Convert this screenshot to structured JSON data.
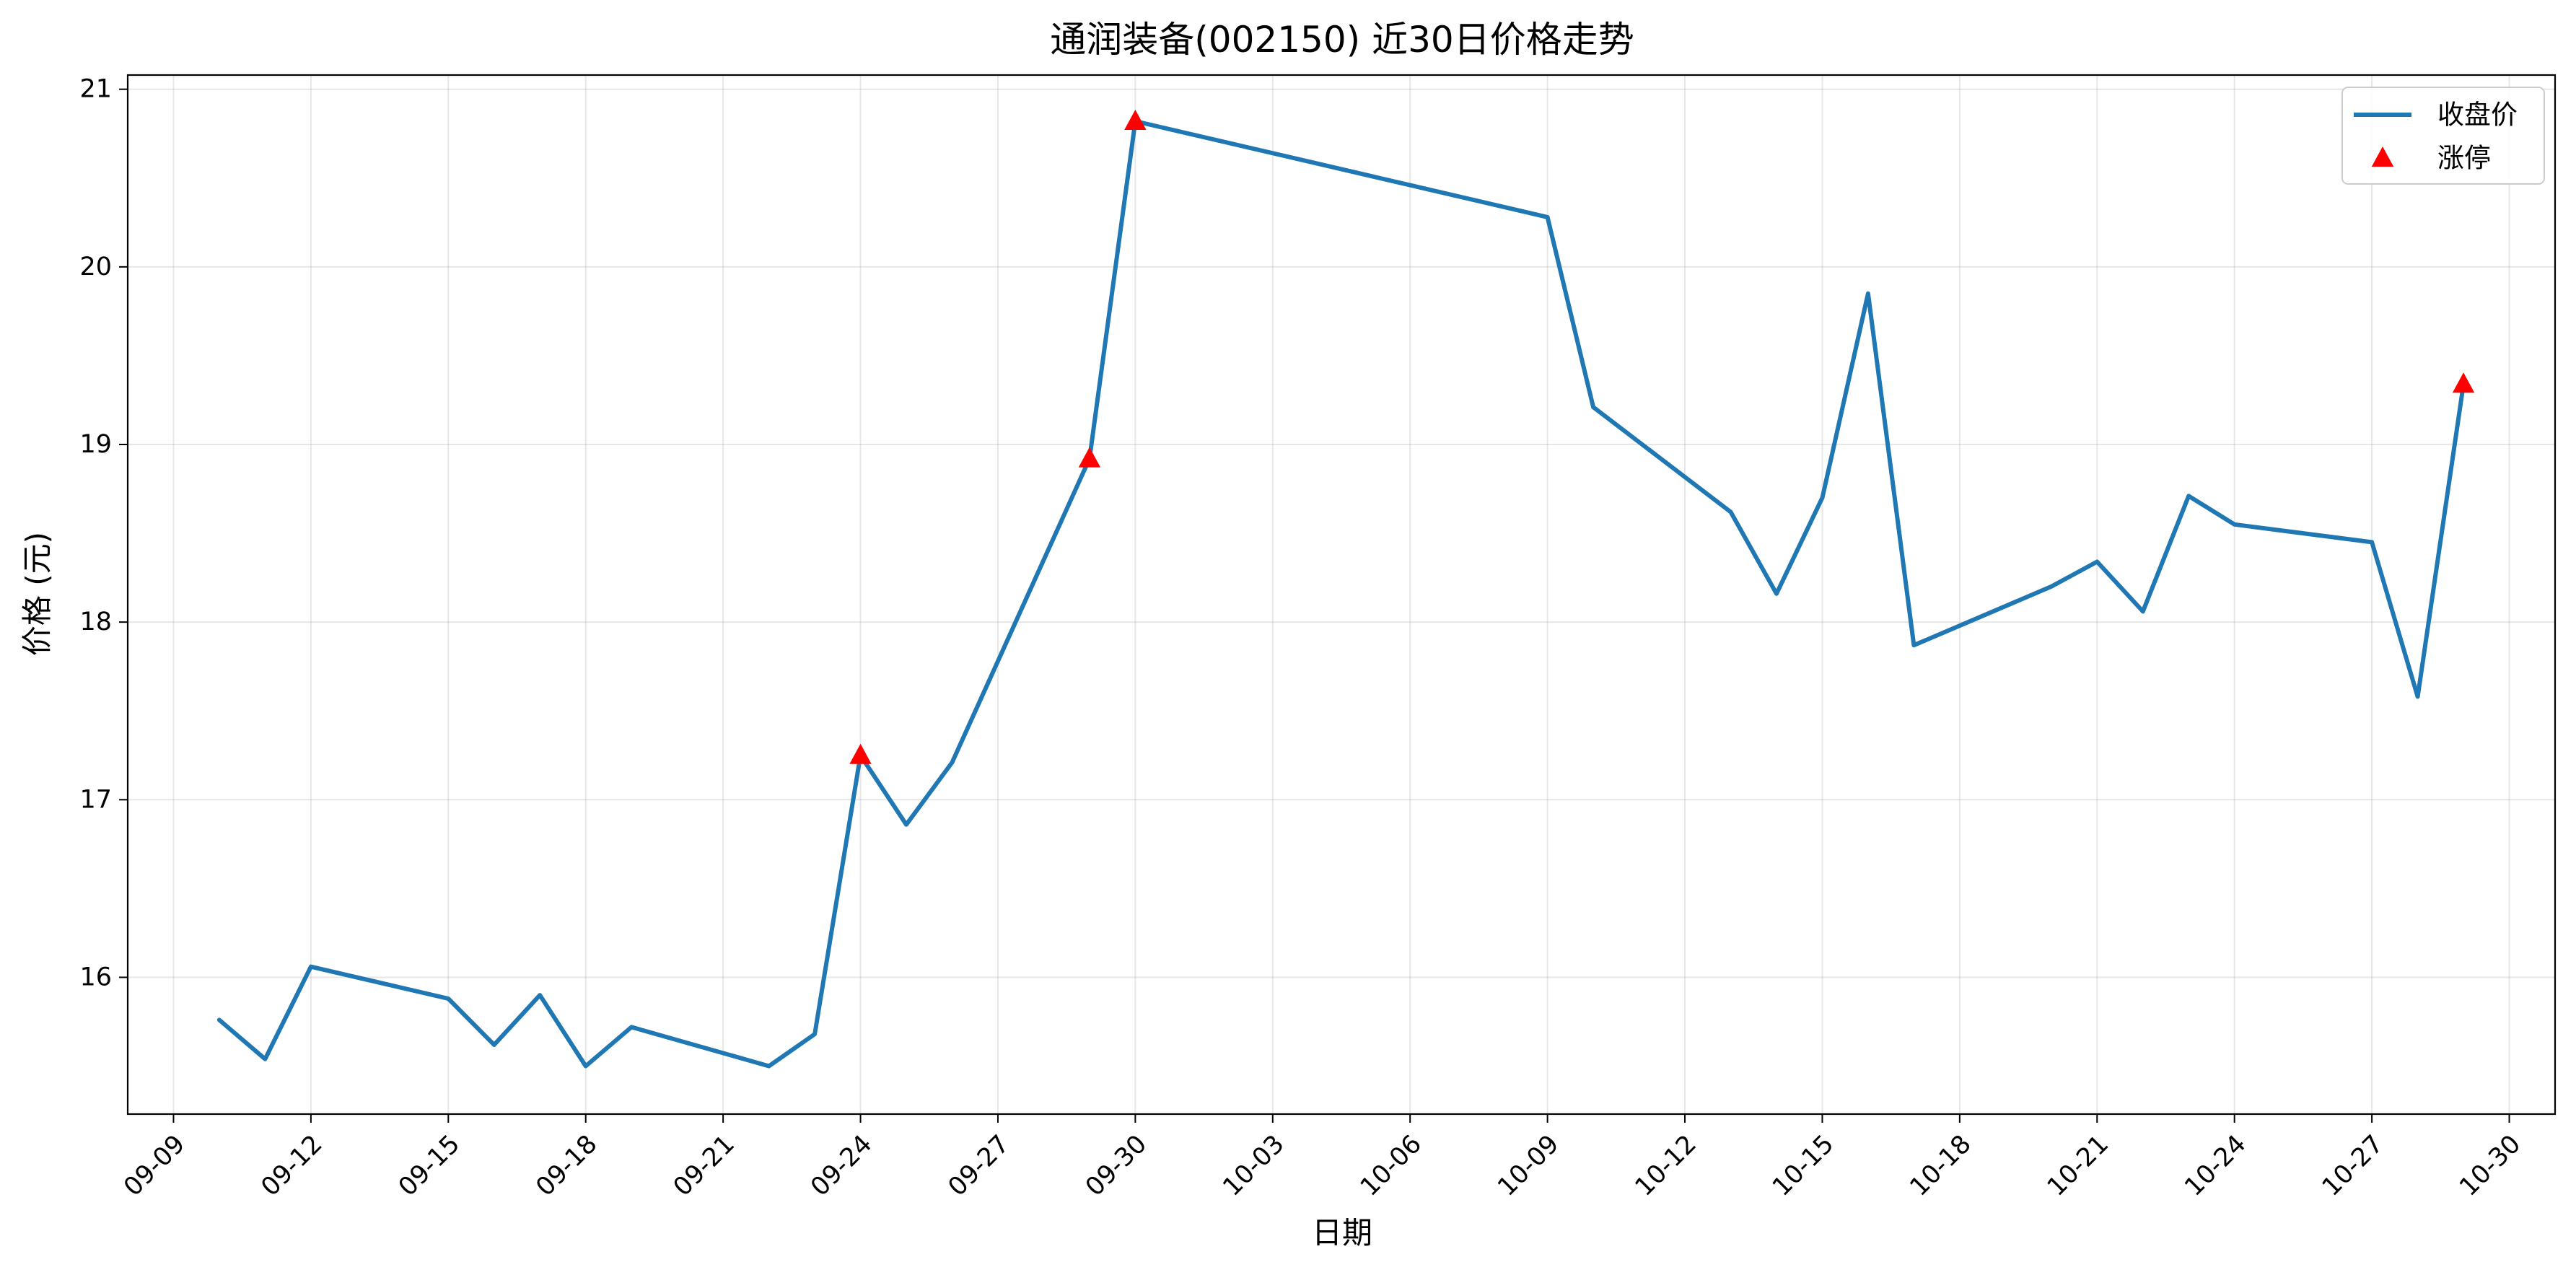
{
  "chart_data": {
    "type": "line",
    "title": "通润装备(002150) 近30日价格走势",
    "xlabel": "日期",
    "ylabel": "价格 (元)",
    "ylim": [
      15.23,
      21.08
    ],
    "xlim": [
      "2024-09-08",
      "2024-10-31"
    ],
    "x_ticks": [
      "09-09",
      "09-12",
      "09-15",
      "09-18",
      "09-21",
      "09-24",
      "09-27",
      "09-30",
      "10-03",
      "10-06",
      "10-09",
      "10-12",
      "10-15",
      "10-18",
      "10-21",
      "10-24",
      "10-27",
      "10-30"
    ],
    "x_tick_dates": [
      "2024-09-09",
      "2024-09-12",
      "2024-09-15",
      "2024-09-18",
      "2024-09-21",
      "2024-09-24",
      "2024-09-27",
      "2024-09-30",
      "2024-10-03",
      "2024-10-06",
      "2024-10-09",
      "2024-10-12",
      "2024-10-15",
      "2024-10-18",
      "2024-10-21",
      "2024-10-24",
      "2024-10-27",
      "2024-10-30"
    ],
    "y_ticks": [
      16,
      17,
      18,
      19,
      20,
      21
    ],
    "grid": true,
    "legend_position": "top-right",
    "series": [
      {
        "name": "收盘价",
        "kind": "line",
        "color": "#1f77b4",
        "x": [
          "2024-09-10",
          "2024-09-11",
          "2024-09-12",
          "2024-09-15",
          "2024-09-16",
          "2024-09-17",
          "2024-09-18",
          "2024-09-19",
          "2024-09-22",
          "2024-09-23",
          "2024-09-24",
          "2024-09-25",
          "2024-09-26",
          "2024-09-29",
          "2024-09-30",
          "2024-10-09",
          "2024-10-10",
          "2024-10-13",
          "2024-10-14",
          "2024-10-15",
          "2024-10-16",
          "2024-10-17",
          "2024-10-20",
          "2024-10-21",
          "2024-10-22",
          "2024-10-23",
          "2024-10-24",
          "2024-10-27",
          "2024-10-28",
          "2024-10-29"
        ],
        "values": [
          15.76,
          15.54,
          16.06,
          15.88,
          15.62,
          15.9,
          15.5,
          15.72,
          15.5,
          15.68,
          17.25,
          16.86,
          17.21,
          18.92,
          20.82,
          20.28,
          19.21,
          18.62,
          18.16,
          18.7,
          19.85,
          17.87,
          18.2,
          18.34,
          18.06,
          18.71,
          18.55,
          18.45,
          17.58,
          19.34
        ]
      },
      {
        "name": "涨停",
        "kind": "scatter",
        "marker": "triangle",
        "color": "#ff0000",
        "x": [
          "2024-09-24",
          "2024-09-29",
          "2024-09-30",
          "2024-10-29"
        ],
        "values": [
          17.25,
          18.92,
          20.82,
          19.34
        ]
      }
    ]
  }
}
